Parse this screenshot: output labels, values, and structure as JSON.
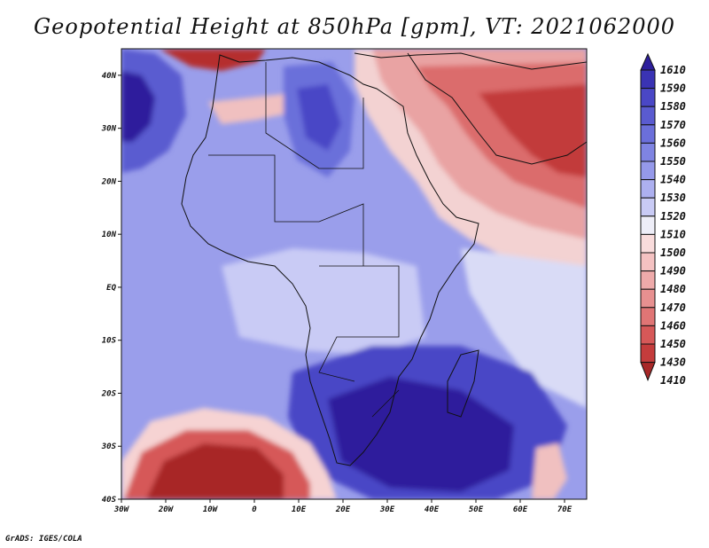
{
  "title": "Geopotential Height at 850hPa [gpm], VT: 2021062000",
  "credit": "GrADS: IGES/COLA",
  "map": {
    "variable": "Geopotential Height",
    "level": "850hPa",
    "units": "gpm",
    "valid_time": "2021062000",
    "lon_range": [
      -30,
      75
    ],
    "lat_range": [
      -40,
      45
    ],
    "lon_ticks": [
      {
        "value": -30,
        "label": "30W"
      },
      {
        "value": -20,
        "label": "20W"
      },
      {
        "value": -10,
        "label": "10W"
      },
      {
        "value": 0,
        "label": "0"
      },
      {
        "value": 10,
        "label": "10E"
      },
      {
        "value": 20,
        "label": "20E"
      },
      {
        "value": 30,
        "label": "30E"
      },
      {
        "value": 40,
        "label": "40E"
      },
      {
        "value": 50,
        "label": "50E"
      },
      {
        "value": 60,
        "label": "60E"
      },
      {
        "value": 70,
        "label": "70E"
      }
    ],
    "lat_ticks": [
      {
        "value": 40,
        "label": "40N"
      },
      {
        "value": 30,
        "label": "30N"
      },
      {
        "value": 20,
        "label": "20N"
      },
      {
        "value": 10,
        "label": "10N"
      },
      {
        "value": 0,
        "label": "EQ"
      },
      {
        "value": -10,
        "label": "10S"
      },
      {
        "value": -20,
        "label": "20S"
      },
      {
        "value": -30,
        "label": "30S"
      },
      {
        "value": -40,
        "label": "40S"
      }
    ],
    "features": [
      {
        "name": "low-center-atlantic-south",
        "lon": -15,
        "lat": -37,
        "value": 1410
      },
      {
        "name": "low-center-arabia",
        "lon": 55,
        "lat": 28,
        "value": 1440
      },
      {
        "name": "high-center-southern-africa",
        "lon": 35,
        "lat": -28,
        "value": 1600
      },
      {
        "name": "high-center-atlantic-north",
        "lon": -28,
        "lat": 33,
        "value": 1600
      },
      {
        "name": "high-center-sahara",
        "lon": 12,
        "lat": 32,
        "value": 1580
      }
    ]
  },
  "colorbar": {
    "levels": [
      {
        "label": "1610",
        "color": "#2d1f9c"
      },
      {
        "label": "1590",
        "color": "#3a33b4"
      },
      {
        "label": "1580",
        "color": "#4a47c6"
      },
      {
        "label": "1570",
        "color": "#5a5bd0"
      },
      {
        "label": "1560",
        "color": "#6b6fda"
      },
      {
        "label": "1550",
        "color": "#7f84e2"
      },
      {
        "label": "1540",
        "color": "#9599ea"
      },
      {
        "label": "1530",
        "color": "#adb0f0"
      },
      {
        "label": "1520",
        "color": "#c9cbf5"
      },
      {
        "label": "1510",
        "color": "#eeeef8"
      },
      {
        "label": "1500",
        "color": "#f9dcdc"
      },
      {
        "label": "1490",
        "color": "#f4c2c2"
      },
      {
        "label": "1480",
        "color": "#eeaaaa"
      },
      {
        "label": "1470",
        "color": "#e79090"
      },
      {
        "label": "1460",
        "color": "#e07575"
      },
      {
        "label": "1450",
        "color": "#d65858"
      },
      {
        "label": "1430",
        "color": "#c43c3c"
      },
      {
        "label": "1410",
        "color": "#a82828"
      }
    ]
  }
}
